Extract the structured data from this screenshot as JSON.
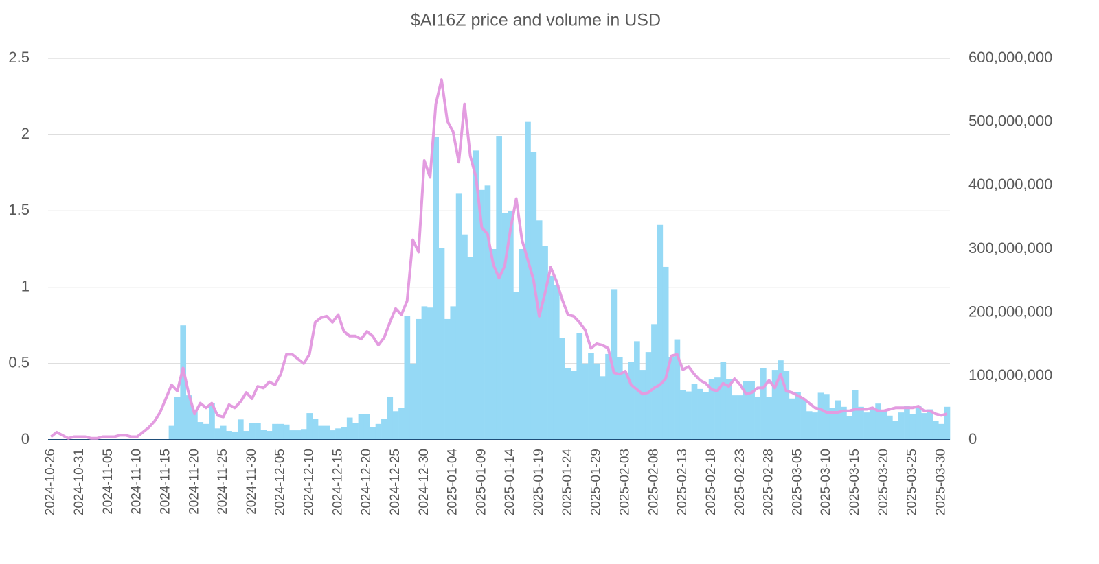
{
  "chart_data": {
    "type": "bar-line",
    "title": "$AI16Z price and volume in USD",
    "categories": [
      "2024-10-26",
      null,
      null,
      null,
      null,
      "2024-10-31",
      null,
      null,
      null,
      null,
      "2024-11-05",
      null,
      null,
      null,
      null,
      "2024-11-10",
      null,
      null,
      null,
      null,
      "2024-11-15",
      null,
      null,
      null,
      null,
      "2024-11-20",
      null,
      null,
      null,
      null,
      "2024-11-25",
      null,
      null,
      null,
      null,
      "2024-11-30",
      null,
      null,
      null,
      null,
      "2024-12-05",
      null,
      null,
      null,
      null,
      "2024-12-10",
      null,
      null,
      null,
      null,
      "2024-12-15",
      null,
      null,
      null,
      null,
      "2024-12-20",
      null,
      null,
      null,
      null,
      "2024-12-25",
      null,
      null,
      null,
      null,
      "2024-12-30",
      null,
      null,
      null,
      null,
      "2025-01-04",
      null,
      null,
      null,
      null,
      "2025-01-09",
      null,
      null,
      null,
      null,
      "2025-01-14",
      null,
      null,
      null,
      null,
      "2025-01-19",
      null,
      null,
      null,
      null,
      "2025-01-24",
      null,
      null,
      null,
      null,
      "2025-01-29",
      null,
      null,
      null,
      null,
      "2025-02-03",
      null,
      null,
      null,
      null,
      "2025-02-08",
      null,
      null,
      null,
      null,
      "2025-02-13",
      null,
      null,
      null,
      null,
      "2025-02-18",
      null,
      null,
      null,
      null,
      "2025-02-23",
      null,
      null,
      null,
      null,
      "2025-02-28",
      null,
      null,
      null,
      null,
      "2025-03-05",
      null,
      null,
      null,
      null,
      "2025-03-10",
      null,
      null,
      null,
      null,
      "2025-03-15",
      null,
      null,
      null,
      null,
      "2025-03-20",
      null,
      null,
      null,
      null,
      "2025-03-25",
      null,
      null,
      null,
      null,
      "2025-03-30",
      null
    ],
    "series": [
      {
        "type": "bar",
        "axis": "y2",
        "color": "#95d9f5",
        "values": [
          null,
          null,
          null,
          null,
          null,
          null,
          null,
          null,
          null,
          null,
          null,
          null,
          null,
          null,
          null,
          null,
          null,
          null,
          null,
          null,
          null,
          22000000,
          68000000,
          180000000,
          70000000,
          45000000,
          28000000,
          25000000,
          58000000,
          18000000,
          22000000,
          14000000,
          13000000,
          32000000,
          14000000,
          26000000,
          26000000,
          16000000,
          14000000,
          25000000,
          25000000,
          24000000,
          15000000,
          15000000,
          17000000,
          42000000,
          33000000,
          22000000,
          22000000,
          15000000,
          18000000,
          20000000,
          35000000,
          26000000,
          40000000,
          40000000,
          20000000,
          25000000,
          33000000,
          68000000,
          45000000,
          50000000,
          195000000,
          120000000,
          190000000,
          210000000,
          208000000,
          477000000,
          302000000,
          190000000,
          210000000,
          387000000,
          323000000,
          288000000,
          455000000,
          393000000,
          400000000,
          300000000,
          478000000,
          357000000,
          360000000,
          233000000,
          300000000,
          500000000,
          453000000,
          345000000,
          305000000,
          258000000,
          243000000,
          160000000,
          113000000,
          108000000,
          168000000,
          120000000,
          137000000,
          120000000,
          100000000,
          135000000,
          237000000,
          130000000,
          105000000,
          122000000,
          155000000,
          110000000,
          138000000,
          182000000,
          338000000,
          272000000,
          130000000,
          158000000,
          78000000,
          76000000,
          88000000,
          80000000,
          75000000,
          95000000,
          98000000,
          122000000,
          95000000,
          70000000,
          70000000,
          92000000,
          92000000,
          68000000,
          113000000,
          67000000,
          110000000,
          125000000,
          108000000,
          65000000,
          75000000,
          65000000,
          45000000,
          43000000,
          74000000,
          72000000,
          50000000,
          62000000,
          52000000,
          37000000,
          78000000,
          52000000,
          43000000,
          48000000,
          57000000,
          47000000,
          38000000,
          30000000,
          43000000,
          53000000,
          40000000,
          53000000,
          42000000,
          48000000,
          30000000,
          25000000,
          52000000
        ]
      },
      {
        "type": "line",
        "color": "#e39ce0",
        "values": [
          0.02,
          0.05,
          0.03,
          0.01,
          0.02,
          0.02,
          0.02,
          0.01,
          0.01,
          0.02,
          0.02,
          0.02,
          0.03,
          0.03,
          0.02,
          0.02,
          0.05,
          0.08,
          0.12,
          0.18,
          0.27,
          0.36,
          0.32,
          0.47,
          0.3,
          0.17,
          0.24,
          0.21,
          0.24,
          0.16,
          0.15,
          0.23,
          0.21,
          0.25,
          0.31,
          0.27,
          0.35,
          0.34,
          0.38,
          0.36,
          0.43,
          0.56,
          0.56,
          0.53,
          0.5,
          0.56,
          0.77,
          0.8,
          0.81,
          0.77,
          0.82,
          0.71,
          0.68,
          0.68,
          0.66,
          0.71,
          0.68,
          0.62,
          0.67,
          0.77,
          0.86,
          0.82,
          0.91,
          1.31,
          1.23,
          1.83,
          1.72,
          2.2,
          2.36,
          2.09,
          2.02,
          1.82,
          2.2,
          1.86,
          1.72,
          1.39,
          1.35,
          1.15,
          1.06,
          1.14,
          1.38,
          1.58,
          1.31,
          1.18,
          1.05,
          0.81,
          0.96,
          1.13,
          1.04,
          0.92,
          0.82,
          0.81,
          0.77,
          0.72,
          0.6,
          0.63,
          0.62,
          0.6,
          0.44,
          0.43,
          0.45,
          0.36,
          0.33,
          0.3,
          0.31,
          0.34,
          0.36,
          0.4,
          0.55,
          0.56,
          0.46,
          0.48,
          0.43,
          0.39,
          0.37,
          0.33,
          0.32,
          0.37,
          0.35,
          0.4,
          0.36,
          0.3,
          0.31,
          0.34,
          0.34,
          0.39,
          0.34,
          0.43,
          0.32,
          0.31,
          0.29,
          0.27,
          0.24,
          0.21,
          0.2,
          0.18,
          0.18,
          0.18,
          0.19,
          0.19,
          0.2,
          0.2,
          0.2,
          0.21,
          0.19,
          0.19,
          0.2,
          0.21,
          0.21,
          0.21,
          0.21,
          0.22,
          0.19,
          0.19,
          0.17,
          0.16,
          0.17
        ]
      }
    ],
    "ylim": [
      0,
      2.5
    ],
    "yticks": [
      0,
      0.5,
      1,
      1.5,
      2,
      2.5
    ],
    "y2lim": [
      0,
      600000000
    ],
    "y2ticks": [
      0,
      {
        "value": 100000000,
        "label": "100,000,000"
      },
      {
        "value": 200000000,
        "label": "200,000,000"
      },
      {
        "value": 300000000,
        "label": "300,000,000"
      },
      {
        "value": 400000000,
        "label": "400,000,000"
      },
      {
        "value": 500000000,
        "label": "500,000,000"
      },
      {
        "value": 600000000,
        "label": "600,000,000"
      }
    ],
    "grid": true
  }
}
